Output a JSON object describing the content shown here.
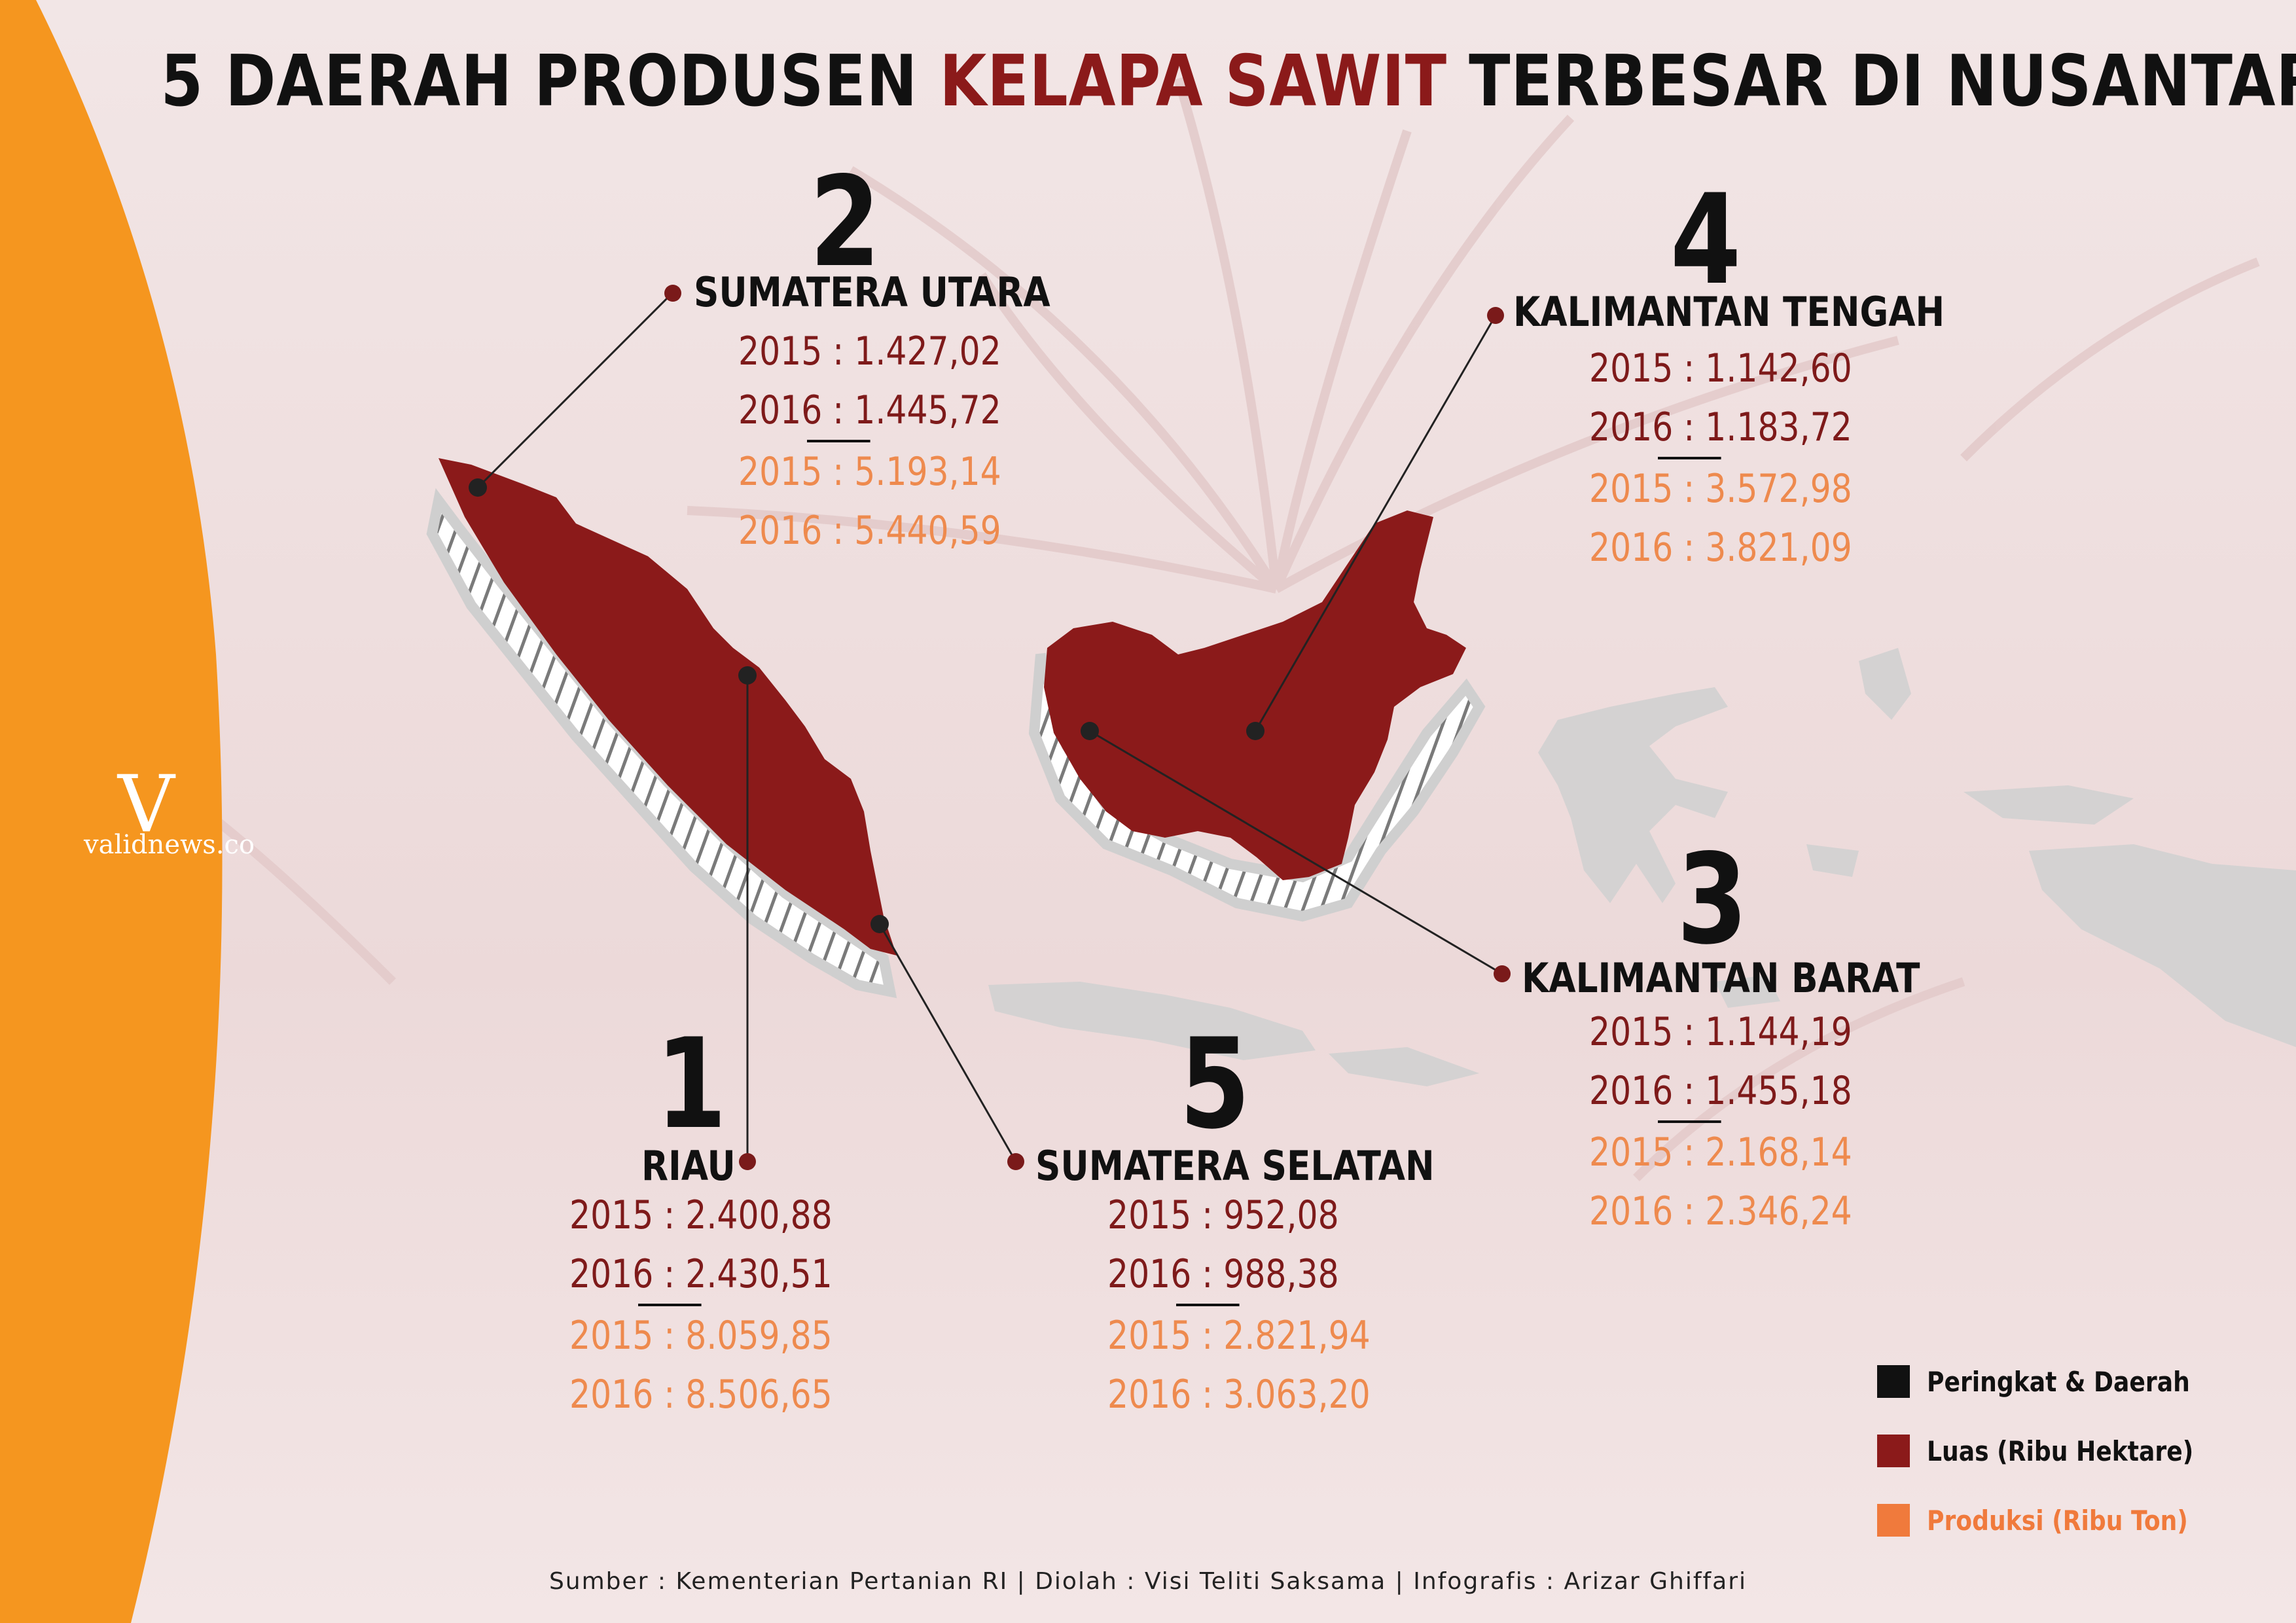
{
  "title": {
    "part1": "5 DAERAH PRODUSEN ",
    "accent": "KELAPA SAWIT",
    "part2": " TERBESAR DI NUSANTARA"
  },
  "colors": {
    "rank_region": "#111111",
    "luas": "#8b1a1a",
    "produksi": "#f07a3c",
    "orange_band": "#f5961f",
    "island_fill": "#8b1a1a"
  },
  "brand": {
    "logo_letter": "V",
    "logo_text": "validnews.co"
  },
  "regions": [
    {
      "rank": "1",
      "name": "RIAU",
      "luas_2015": "2015 : 2.400,88",
      "luas_2016": "2016 : 2.430,51",
      "prod_2015": "2015 : 8.059,85",
      "prod_2016": "2016 : 8.506,65"
    },
    {
      "rank": "2",
      "name": "SUMATERA UTARA",
      "luas_2015": "2015 : 1.427,02",
      "luas_2016": "2016 : 1.445,72",
      "prod_2015": "2015 : 5.193,14",
      "prod_2016": "2016 : 5.440,59"
    },
    {
      "rank": "3",
      "name": "KALIMANTAN BARAT",
      "luas_2015": "2015 : 1.144,19",
      "luas_2016": "2016 : 1.455,18",
      "prod_2015": "2015 : 2.168,14",
      "prod_2016": "2016 : 2.346,24"
    },
    {
      "rank": "4",
      "name": "KALIMANTAN TENGAH",
      "luas_2015": "2015 : 1.142,60",
      "luas_2016": "2016 : 1.183,72",
      "prod_2015": "2015 : 3.572,98",
      "prod_2016": "2016 : 3.821,09"
    },
    {
      "rank": "5",
      "name": "SUMATERA SELATAN",
      "luas_2015": "2015 : 952,08",
      "luas_2016": "2016 : 988,38",
      "prod_2015": "2015 : 2.821,94",
      "prod_2016": "2016 : 3.063,20"
    }
  ],
  "legend": [
    {
      "label": "Peringkat & Daerah",
      "color": "#111111"
    },
    {
      "label": "Luas (Ribu Hektare)",
      "color": "#8b1a1a"
    },
    {
      "label": "Produksi (Ribu Ton)",
      "color": "#f07a3c"
    }
  ],
  "source": "Sumber : Kementerian Pertanian RI | Diolah : Visi Teliti Saksama | Infografis : Arizar Ghiffari"
}
